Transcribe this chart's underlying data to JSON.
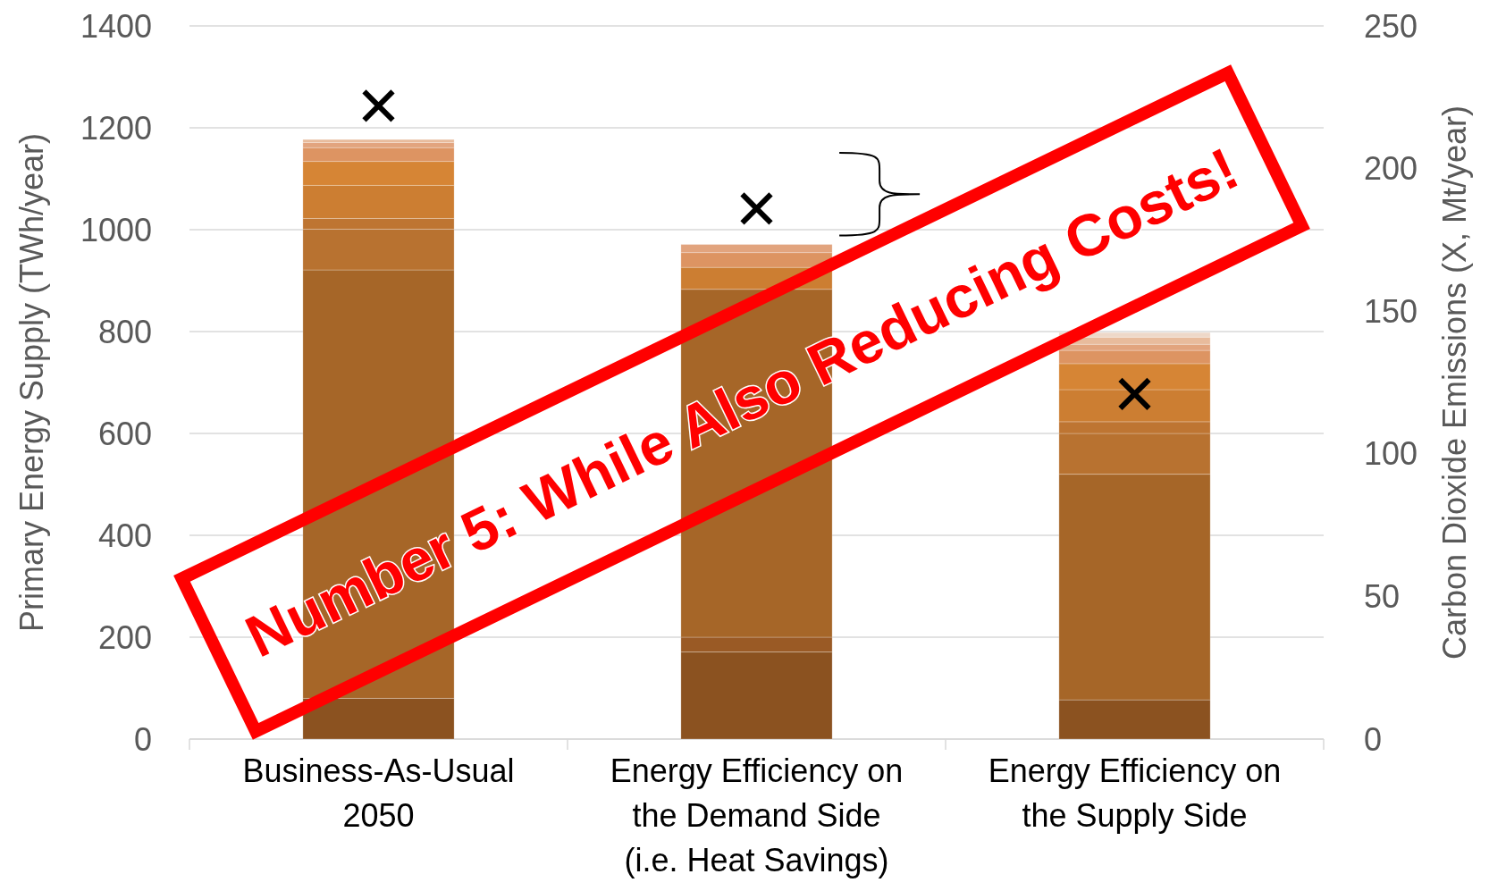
{
  "chart_data": {
    "type": "bar",
    "stacked": true,
    "categories": [
      "Business-As-Usual\n2050",
      "Energy Efficiency on\nthe Demand Side\n(i.e. Heat Savings)",
      "Energy Efficiency on\nthe Supply Side"
    ],
    "ylabel": "Primary Energy Supply (TWh/year)",
    "y2label": "Carbon Dioxide Emissions (X, Mt/year)",
    "ylim": [
      0,
      1400
    ],
    "yticks": [
      0,
      200,
      400,
      600,
      800,
      1000,
      1200,
      1400
    ],
    "y2lim": [
      0,
      250
    ],
    "y2ticks": [
      0,
      50,
      100,
      150,
      200,
      250
    ],
    "grid": "y",
    "series": [
      {
        "color": "#8b5220",
        "values": [
          80,
          171,
          77
        ]
      },
      {
        "color": "#9a5a25",
        "values": [
          0,
          29,
          0
        ]
      },
      {
        "color": "#a66628",
        "values": [
          841,
          683,
          443
        ]
      },
      {
        "color": "#b87230",
        "values": [
          80,
          0,
          80
        ]
      },
      {
        "color": "#be7532",
        "values": [
          21,
          0,
          23
        ]
      },
      {
        "color": "#cc7e32",
        "values": [
          65,
          43,
          63
        ]
      },
      {
        "color": "#d68535",
        "values": [
          47,
          0,
          51
        ]
      },
      {
        "color": "#dd9462",
        "values": [
          27,
          29,
          26
        ]
      },
      {
        "color": "#e2a47e",
        "values": [
          10,
          16,
          12
        ]
      },
      {
        "color": "#e8bb9c",
        "values": [
          6,
          0,
          14
        ]
      },
      {
        "color": "#eed8c8",
        "values": [
          0,
          0,
          9
        ]
      },
      {
        "type": "scatter",
        "axis": "y2",
        "marker": "cross",
        "color": "#000000",
        "x": [
          "Business-As-Usual\n2050",
          "Energy Efficiency on\nthe Demand Side\n(i.e. Heat Savings)",
          "Energy Efficiency on\nthe Supply Side"
        ],
        "values": [
          222,
          186,
          121
        ]
      }
    ],
    "annotations": [
      "Number 5: While Also Reducing Costs!"
    ]
  }
}
